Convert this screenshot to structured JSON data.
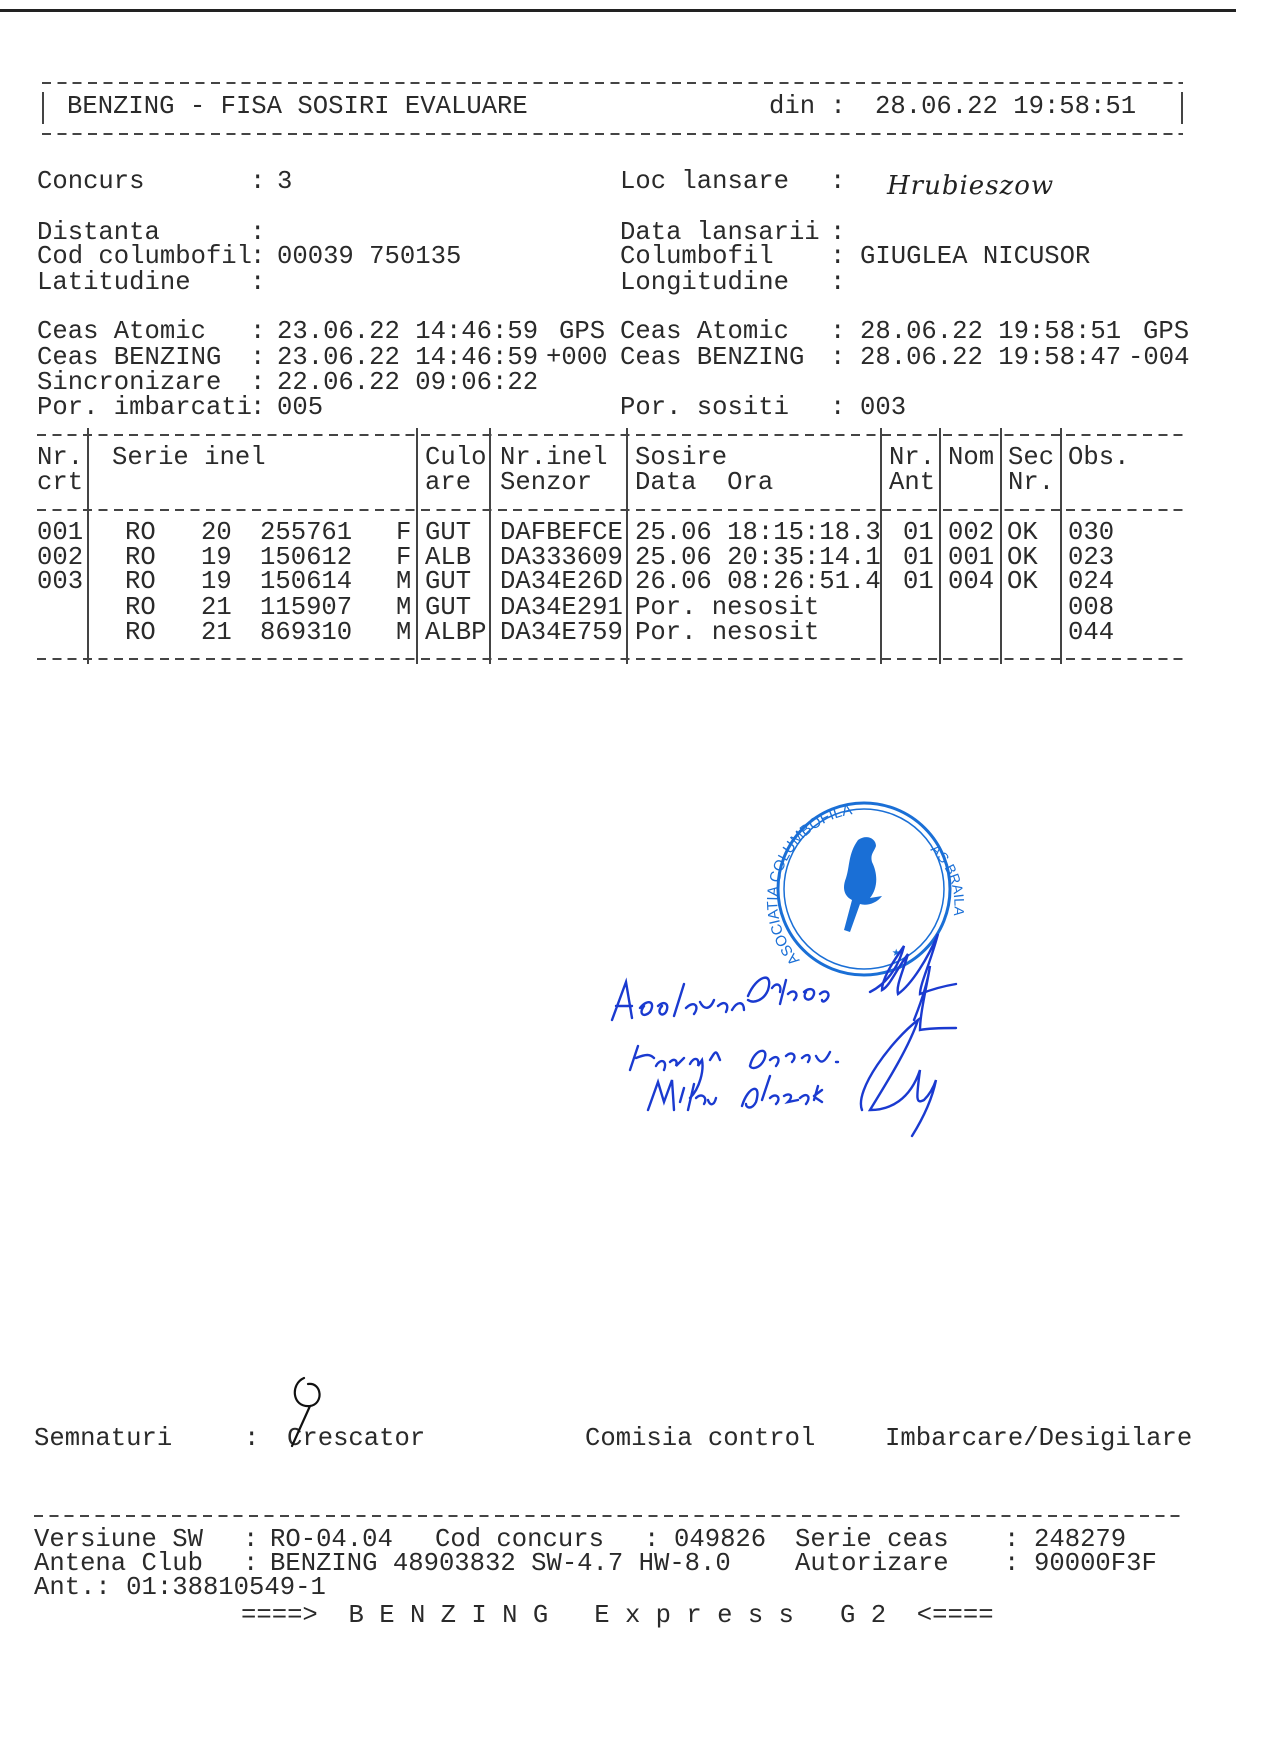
{
  "sep": ":",
  "header": {
    "title": "BENZING - FISA SOSIRI EVALUARE",
    "din_label": "din :",
    "din_value": "28.06.22 19:58:51"
  },
  "info": {
    "concurs": {
      "label": "Concurs",
      "value": "3"
    },
    "loc_lansare": {
      "label": "Loc lansare",
      "value": "Hrubieszow"
    },
    "distanta": {
      "label": "Distanta",
      "value": ""
    },
    "data_lansarii": {
      "label": "Data lansarii",
      "value": ""
    },
    "cod_columbofil": {
      "label": "Cod columbofil",
      "value": "00039 750135"
    },
    "columbofil": {
      "label": "Columbofil",
      "value": "GIUGLEA NICUSOR"
    },
    "latitudine": {
      "label": "Latitudine",
      "value": ""
    },
    "longitudine": {
      "label": "Longitudine",
      "value": ""
    },
    "ceas_atomic_start": {
      "label": "Ceas Atomic",
      "value": "23.06.22 14:46:59",
      "suffix": "GPS"
    },
    "ceas_atomic_end": {
      "label": "Ceas Atomic",
      "value": "28.06.22 19:58:51",
      "suffix": "GPS"
    },
    "ceas_benzing_start": {
      "label": "Ceas BENZING",
      "value": "23.06.22 14:46:59",
      "suffix": "+000"
    },
    "ceas_benzing_end": {
      "label": "Ceas BENZING",
      "value": "28.06.22 19:58:47",
      "suffix": "-004"
    },
    "sincronizare": {
      "label": "Sincronizare",
      "value": "22.06.22 09:06:22"
    },
    "por_imbarcati": {
      "label": "Por. imbarcati",
      "value": "005"
    },
    "por_sositi": {
      "label": "Por. sositi",
      "value": "003"
    }
  },
  "table": {
    "headers": {
      "nr_1": "Nr.",
      "nr_2": "crt",
      "serie": "Serie inel",
      "culoare_1": "Culo",
      "culoare_2": "are",
      "nrinel_1": "Nr.inel",
      "nrinel_2": "Senzor",
      "sosire_1": "Sosire",
      "sosire_2": "Data  Ora",
      "ant_1": "Nr.",
      "ant_2": "Ant",
      "nom": "Nom",
      "sec_1": "Sec",
      "sec_2": "Nr.",
      "obs": "Obs."
    },
    "rows": [
      {
        "nr": "001",
        "tara": "RO",
        "an": "20",
        "numar": "255761",
        "sex": "F",
        "culoare": "GUT",
        "senzor": "DAFBEFCE",
        "sosire": "25.06 18:15:18.3",
        "ant": "01",
        "nom": "002",
        "sec": "OK",
        "obs": "030"
      },
      {
        "nr": "002",
        "tara": "RO",
        "an": "19",
        "numar": "150612",
        "sex": "F",
        "culoare": "ALB",
        "senzor": "DA333609",
        "sosire": "25.06 20:35:14.1",
        "ant": "01",
        "nom": "001",
        "sec": "OK",
        "obs": "023"
      },
      {
        "nr": "003",
        "tara": "RO",
        "an": "19",
        "numar": "150614",
        "sex": "M",
        "culoare": "GUT",
        "senzor": "DA34E26D",
        "sosire": "26.06 08:26:51.4",
        "ant": "01",
        "nom": "004",
        "sec": "OK",
        "obs": "024"
      },
      {
        "nr": "",
        "tara": "RO",
        "an": "21",
        "numar": "115907",
        "sex": "M",
        "culoare": "GUT",
        "senzor": "DA34E291",
        "sosire": "Por. nesosit",
        "ant": "",
        "nom": "",
        "sec": "",
        "obs": "008"
      },
      {
        "nr": "",
        "tara": "RO",
        "an": "21",
        "numar": "869310",
        "sex": "M",
        "culoare": "ALBP",
        "senzor": "DA34E759",
        "sosire": "Por. nesosit",
        "ant": "",
        "nom": "",
        "sec": "",
        "obs": "044"
      }
    ]
  },
  "stamp": {
    "text_top": "ASOCIATIA COLUMBOFILA",
    "text_right": "AS BRAILA",
    "color": "#1a6fd6",
    "icon": "pigeon-icon"
  },
  "signatures": {
    "label": "Semnaturi",
    "crescator": "Crescator",
    "comisia": "Comisia control",
    "imbarcare": "Imbarcare/Desigilare",
    "ink_color": "#1a3ad0"
  },
  "footer": {
    "versiune_sw": {
      "label": "Versiune SW",
      "value": "RO-04.04"
    },
    "cod_concurs": {
      "label": "Cod concurs",
      "value": "049826"
    },
    "serie_ceas": {
      "label": "Serie ceas",
      "value": "248279"
    },
    "antena_club": {
      "label": "Antena Club",
      "value": "BENZING 48903832 SW-4.7 HW-8.0"
    },
    "autorizare": {
      "label": "Autorizare",
      "value": "90000F3F"
    },
    "ant": "Ant.: 01:38810549-1",
    "banner": "====>  B E N Z I N G   E x p r e s s   G 2  <===="
  }
}
